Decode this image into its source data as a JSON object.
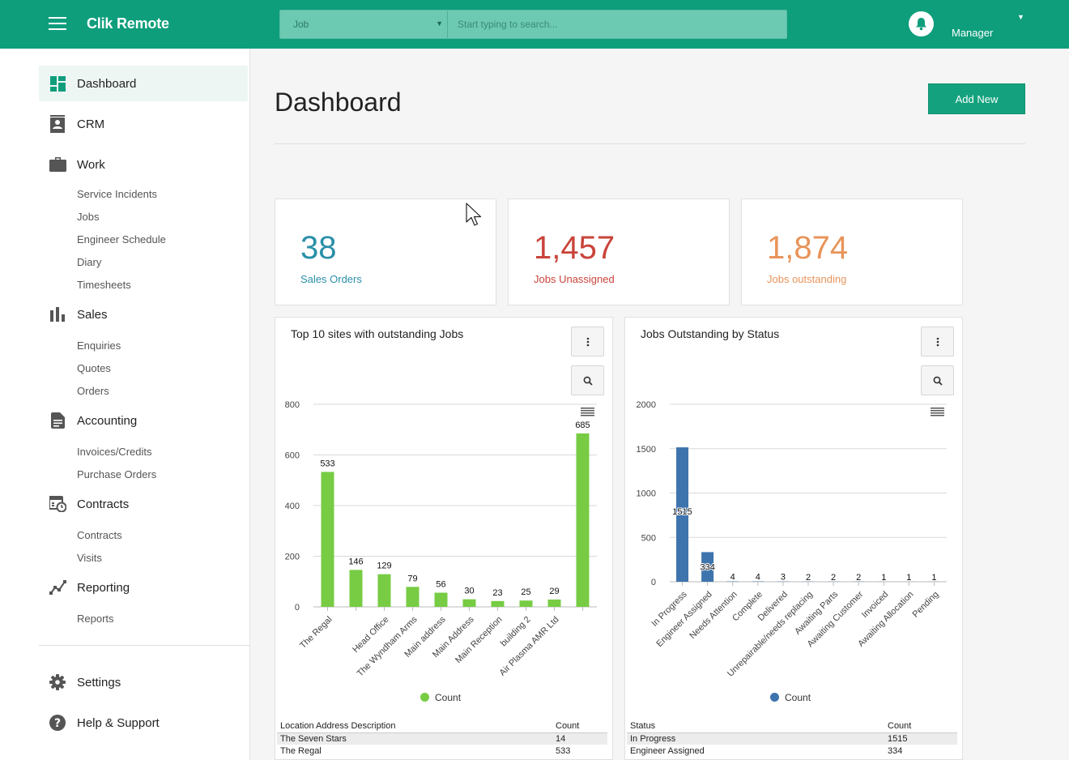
{
  "app": {
    "name": "Clik Remote"
  },
  "search": {
    "category": "Job",
    "placeholder": "Start typing to search..."
  },
  "user": {
    "name": "Manager"
  },
  "sidebar": {
    "sections": [
      {
        "label": "Dashboard",
        "icon": "dashboard-icon"
      },
      {
        "label": "CRM",
        "icon": "contact-card-icon"
      },
      {
        "label": "Work",
        "icon": "briefcase-icon",
        "items": [
          "Service Incidents",
          "Jobs",
          "Engineer Schedule",
          "Diary",
          "Timesheets"
        ]
      },
      {
        "label": "Sales",
        "icon": "bar-chart-icon",
        "items": [
          "Enquiries",
          "Quotes",
          "Orders"
        ]
      },
      {
        "label": "Accounting",
        "icon": "document-icon",
        "items": [
          "Invoices/Credits",
          "Purchase Orders"
        ]
      },
      {
        "label": "Contracts",
        "icon": "calendar-clock-icon",
        "items": [
          "Contracts",
          "Visits"
        ]
      },
      {
        "label": "Reporting",
        "icon": "line-chart-icon",
        "items": [
          "Reports"
        ]
      }
    ],
    "footer": [
      {
        "label": "Settings",
        "icon": "gear-icon"
      },
      {
        "label": "Help & Support",
        "icon": "help-icon"
      }
    ]
  },
  "page": {
    "title": "Dashboard",
    "add_button": "Add New"
  },
  "stats": [
    {
      "value": "38",
      "label": "Sales Orders",
      "color": "#2a8fa8"
    },
    {
      "value": "1,457",
      "label": "Jobs Unassigned",
      "color": "#c9443a"
    },
    {
      "value": "1,874",
      "label": "Jobs outstanding",
      "color": "#e8945a"
    }
  ],
  "chart_data": [
    {
      "type": "bar",
      "title": "Top 10 sites with outstanding Jobs",
      "categories": [
        "The Regal",
        "",
        "Head Office",
        "The Wyndham Arms",
        "Main address",
        "Main Address",
        "Main Reception",
        "building 2",
        "Air Plasma AMR Ltd",
        ""
      ],
      "series": [
        {
          "name": "Count",
          "values": [
            533,
            146,
            129,
            79,
            56,
            30,
            23,
            25,
            29,
            685
          ],
          "color": "#77cc44"
        }
      ],
      "ylim": [
        0,
        800
      ],
      "yticks": [
        0,
        200,
        400,
        600,
        800
      ],
      "grid": true,
      "legend": "bottom",
      "table": {
        "headers": [
          "Location Address Description",
          "Count"
        ],
        "rows": [
          [
            "The Seven Stars",
            "14"
          ],
          [
            "The Regal",
            "533"
          ]
        ]
      }
    },
    {
      "type": "bar",
      "title": "Jobs Outstanding by Status",
      "categories": [
        "In Progress",
        "Engineer Assigned",
        "Needs Attention",
        "Complete",
        "Delivered",
        "Unrepairable/needs replacing",
        "Awaiting Parts",
        "Awaiting Customer",
        "Invoiced",
        "Awaiting Allocation",
        "Pending"
      ],
      "series": [
        {
          "name": "Count",
          "values": [
            1515,
            334,
            4,
            4,
            3,
            2,
            2,
            2,
            1,
            1,
            1
          ],
          "color": "#3d74ad"
        }
      ],
      "ylim": [
        0,
        2000
      ],
      "yticks": [
        0,
        500,
        1000,
        1500,
        2000
      ],
      "grid": true,
      "legend": "bottom",
      "table": {
        "headers": [
          "Status",
          "Count"
        ],
        "rows": [
          [
            "In Progress",
            "1515"
          ],
          [
            "Engineer Assigned",
            "334"
          ]
        ]
      }
    }
  ]
}
